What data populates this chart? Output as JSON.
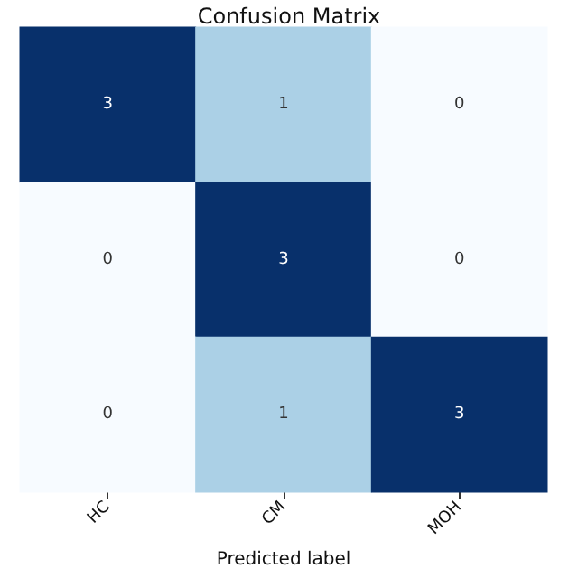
{
  "chart_data": {
    "type": "heatmap",
    "title": "Confusion Matrix",
    "xlabel": "Predicted label",
    "categories": [
      "HC",
      "CM",
      "MOH"
    ],
    "y_categories": [
      null,
      null,
      null
    ],
    "cells": [
      [
        3,
        1,
        0
      ],
      [
        0,
        3,
        0
      ],
      [
        0,
        1,
        3
      ]
    ],
    "colors": [
      "#f7fbff",
      "#deebf7",
      "#c6dbef",
      "#9ecae1",
      "#6baed6",
      "#4292c6",
      "#2171b5",
      "#08519c",
      "#08306b"
    ],
    "data_labels": true
  }
}
